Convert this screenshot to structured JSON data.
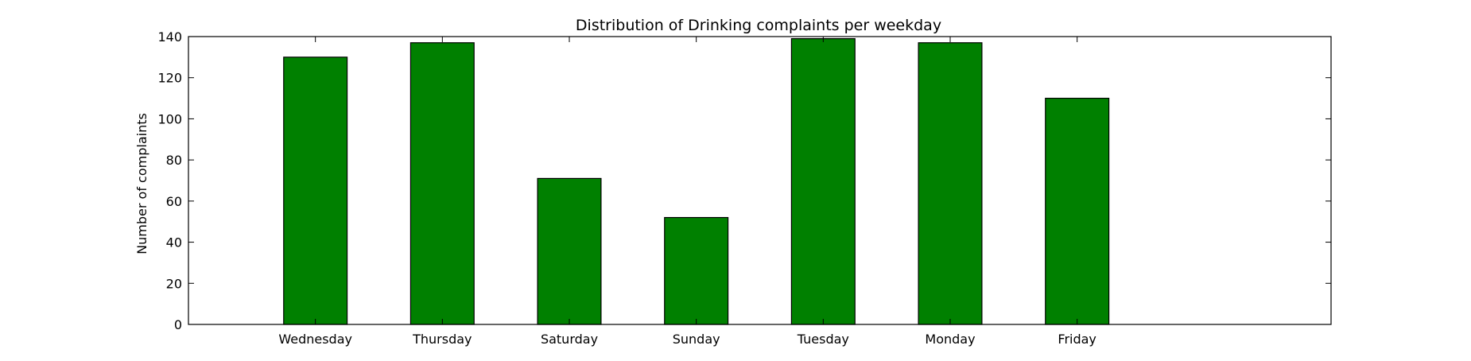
{
  "chart_data": {
    "type": "bar",
    "title": "Distribution of  Drinking complaints per weekday",
    "xlabel": "",
    "ylabel": "Number of complaints",
    "categories": [
      "Wednesday",
      "Thursday",
      "Saturday",
      "Sunday",
      "Tuesday",
      "Monday",
      "Friday"
    ],
    "values": [
      130,
      137,
      71,
      52,
      139,
      137,
      110
    ],
    "ylim": [
      0,
      140
    ],
    "yticks": [
      0,
      20,
      40,
      60,
      80,
      100,
      120,
      140
    ],
    "grid": false,
    "legend": "none",
    "bar_color": "#008000",
    "edge_color": "#000000"
  }
}
